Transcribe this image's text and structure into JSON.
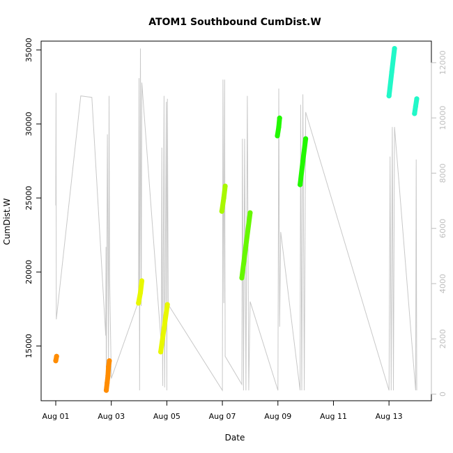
{
  "chart_data": {
    "type": "scatter",
    "title": "ATOM1 Southbound CumDist.W",
    "xlabel": "Date",
    "ylabel": "CumDist.W",
    "x_ticks": [
      "Aug 01",
      "Aug 03",
      "Aug 05",
      "Aug 07",
      "Aug 09",
      "Aug 11",
      "Aug 13"
    ],
    "y_ticks": [
      "15000",
      "20000",
      "25000",
      "30000",
      "35000"
    ],
    "y2_ticks": [
      "0",
      "2000",
      "4000",
      "6000",
      "8000",
      "10000",
      "12000"
    ],
    "xlim": [
      0,
      13
    ],
    "ylim": [
      11300,
      35600
    ],
    "y2lim": [
      -240,
      12780
    ],
    "axis_colors": {
      "primary": "#000000",
      "secondary": "#bebebe",
      "trace": "#c8c8c8"
    },
    "series": [
      {
        "color": "#ff8c00",
        "segments": [
          [
            [
              0.0,
              14000
            ],
            [
              0.03,
              14300
            ]
          ],
          [
            [
              1.82,
              12000
            ],
            [
              1.85,
              12500
            ],
            [
              1.88,
              13000
            ],
            [
              1.9,
              13600
            ],
            [
              1.93,
              14000
            ]
          ]
        ]
      },
      {
        "color": "#e8f800",
        "segments": [
          [
            [
              2.98,
              17900
            ],
            [
              3.05,
              18600
            ],
            [
              3.1,
              19400
            ]
          ],
          [
            [
              3.78,
              14600
            ],
            [
              3.9,
              16200
            ],
            [
              4.02,
              17800
            ]
          ]
        ]
      },
      {
        "color": "#a8f800",
        "segments": [
          [
            [
              5.98,
              24100
            ],
            [
              6.05,
              25000
            ],
            [
              6.1,
              25800
            ]
          ]
        ]
      },
      {
        "color": "#66f800",
        "segments": [
          [
            [
              6.7,
              19600
            ],
            [
              6.85,
              21800
            ],
            [
              7.0,
              24000
            ]
          ]
        ]
      },
      {
        "color": "#22f800",
        "segments": [
          [
            [
              7.98,
              29200
            ],
            [
              8.03,
              29800
            ],
            [
              8.06,
              30400
            ]
          ],
          [
            [
              8.8,
              25900
            ],
            [
              8.9,
              27500
            ],
            [
              9.0,
              29000
            ]
          ]
        ]
      },
      {
        "color": "#22f8c8",
        "segments": [
          [
            [
              12.0,
              31900
            ],
            [
              12.1,
              33500
            ],
            [
              12.2,
              35100
            ]
          ],
          [
            [
              12.92,
              30700
            ],
            [
              12.96,
              31200
            ],
            [
              13.0,
              31700
            ]
          ]
        ]
      }
    ],
    "trace_line": [
      [
        0.0,
        24500
      ],
      [
        0.01,
        32100
      ],
      [
        0.02,
        16800
      ],
      [
        0.9,
        31900
      ],
      [
        1.3,
        31800
      ],
      [
        1.8,
        15700
      ],
      [
        1.81,
        21700
      ],
      [
        1.82,
        12000
      ],
      [
        1.86,
        29300
      ],
      [
        1.9,
        13500
      ],
      [
        1.92,
        31900
      ],
      [
        1.94,
        19600
      ],
      [
        2.0,
        12800
      ],
      [
        2.98,
        18000
      ],
      [
        3.0,
        33100
      ],
      [
        3.02,
        12000
      ],
      [
        3.05,
        35100
      ],
      [
        3.08,
        17700
      ],
      [
        3.1,
        32800
      ],
      [
        3.8,
        15100
      ],
      [
        3.82,
        28400
      ],
      [
        3.85,
        12300
      ],
      [
        3.9,
        31900
      ],
      [
        3.92,
        12200
      ],
      [
        3.98,
        31500
      ],
      [
        4.0,
        12000
      ],
      [
        4.02,
        31700
      ],
      [
        4.05,
        17800
      ],
      [
        6.0,
        12000
      ],
      [
        6.02,
        33000
      ],
      [
        6.05,
        17900
      ],
      [
        6.08,
        33000
      ],
      [
        6.1,
        14300
      ],
      [
        6.7,
        12400
      ],
      [
        6.72,
        29000
      ],
      [
        6.76,
        12000
      ],
      [
        6.8,
        29000
      ],
      [
        6.85,
        12000
      ],
      [
        6.9,
        31900
      ],
      [
        6.95,
        12000
      ],
      [
        7.0,
        18000
      ],
      [
        8.0,
        12000
      ],
      [
        8.03,
        32400
      ],
      [
        8.06,
        16300
      ],
      [
        8.1,
        22700
      ],
      [
        8.8,
        12000
      ],
      [
        8.82,
        31300
      ],
      [
        8.86,
        12000
      ],
      [
        8.9,
        32000
      ],
      [
        8.95,
        12000
      ],
      [
        9.0,
        30800
      ],
      [
        12.0,
        12000
      ],
      [
        12.04,
        27800
      ],
      [
        12.08,
        12000
      ],
      [
        12.12,
        29800
      ],
      [
        12.16,
        12000
      ],
      [
        12.2,
        29800
      ],
      [
        12.96,
        12000
      ],
      [
        12.98,
        27600
      ],
      [
        13.0,
        12000
      ]
    ]
  }
}
